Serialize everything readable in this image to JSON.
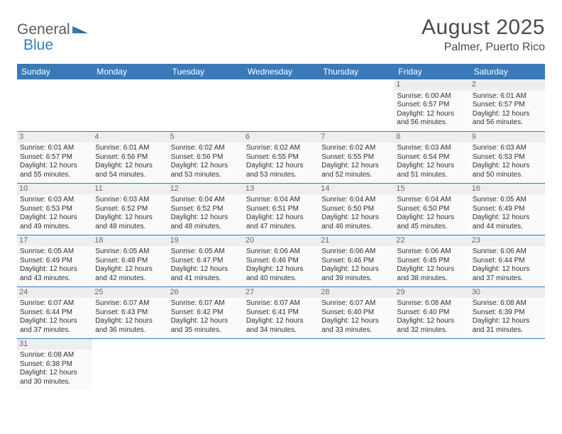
{
  "logo": {
    "word1": "General",
    "word2": "Blue"
  },
  "title": "August 2025",
  "subtitle": "Palmer, Puerto Rico",
  "colors": {
    "header_bg": "#3a7ab8",
    "header_text": "#ffffff",
    "cell_bg": "#fafafa",
    "daybar_bg": "#eeeeee",
    "border": "#3a7ab8",
    "text": "#303030",
    "logo_gray": "#5a5a5a",
    "logo_blue": "#3a7ab8"
  },
  "fontsize": {
    "title": 30,
    "subtitle": 16,
    "th": 12,
    "cell": 10,
    "daynum": 11
  },
  "weekdays": [
    "Sunday",
    "Monday",
    "Tuesday",
    "Wednesday",
    "Thursday",
    "Friday",
    "Saturday"
  ],
  "first_weekday": 5,
  "days_in_month": 31,
  "days": {
    "1": {
      "sunrise": "6:00 AM",
      "sunset": "6:57 PM",
      "daylight": "12 hours and 56 minutes."
    },
    "2": {
      "sunrise": "6:01 AM",
      "sunset": "6:57 PM",
      "daylight": "12 hours and 56 minutes."
    },
    "3": {
      "sunrise": "6:01 AM",
      "sunset": "6:57 PM",
      "daylight": "12 hours and 55 minutes."
    },
    "4": {
      "sunrise": "6:01 AM",
      "sunset": "6:56 PM",
      "daylight": "12 hours and 54 minutes."
    },
    "5": {
      "sunrise": "6:02 AM",
      "sunset": "6:56 PM",
      "daylight": "12 hours and 53 minutes."
    },
    "6": {
      "sunrise": "6:02 AM",
      "sunset": "6:55 PM",
      "daylight": "12 hours and 53 minutes."
    },
    "7": {
      "sunrise": "6:02 AM",
      "sunset": "6:55 PM",
      "daylight": "12 hours and 52 minutes."
    },
    "8": {
      "sunrise": "6:03 AM",
      "sunset": "6:54 PM",
      "daylight": "12 hours and 51 minutes."
    },
    "9": {
      "sunrise": "6:03 AM",
      "sunset": "6:53 PM",
      "daylight": "12 hours and 50 minutes."
    },
    "10": {
      "sunrise": "6:03 AM",
      "sunset": "6:53 PM",
      "daylight": "12 hours and 49 minutes."
    },
    "11": {
      "sunrise": "6:03 AM",
      "sunset": "6:52 PM",
      "daylight": "12 hours and 48 minutes."
    },
    "12": {
      "sunrise": "6:04 AM",
      "sunset": "6:52 PM",
      "daylight": "12 hours and 48 minutes."
    },
    "13": {
      "sunrise": "6:04 AM",
      "sunset": "6:51 PM",
      "daylight": "12 hours and 47 minutes."
    },
    "14": {
      "sunrise": "6:04 AM",
      "sunset": "6:50 PM",
      "daylight": "12 hours and 46 minutes."
    },
    "15": {
      "sunrise": "6:04 AM",
      "sunset": "6:50 PM",
      "daylight": "12 hours and 45 minutes."
    },
    "16": {
      "sunrise": "6:05 AM",
      "sunset": "6:49 PM",
      "daylight": "12 hours and 44 minutes."
    },
    "17": {
      "sunrise": "6:05 AM",
      "sunset": "6:49 PM",
      "daylight": "12 hours and 43 minutes."
    },
    "18": {
      "sunrise": "6:05 AM",
      "sunset": "6:48 PM",
      "daylight": "12 hours and 42 minutes."
    },
    "19": {
      "sunrise": "6:05 AM",
      "sunset": "6:47 PM",
      "daylight": "12 hours and 41 minutes."
    },
    "20": {
      "sunrise": "6:06 AM",
      "sunset": "6:46 PM",
      "daylight": "12 hours and 40 minutes."
    },
    "21": {
      "sunrise": "6:06 AM",
      "sunset": "6:46 PM",
      "daylight": "12 hours and 39 minutes."
    },
    "22": {
      "sunrise": "6:06 AM",
      "sunset": "6:45 PM",
      "daylight": "12 hours and 38 minutes."
    },
    "23": {
      "sunrise": "6:06 AM",
      "sunset": "6:44 PM",
      "daylight": "12 hours and 37 minutes."
    },
    "24": {
      "sunrise": "6:07 AM",
      "sunset": "6:44 PM",
      "daylight": "12 hours and 37 minutes."
    },
    "25": {
      "sunrise": "6:07 AM",
      "sunset": "6:43 PM",
      "daylight": "12 hours and 36 minutes."
    },
    "26": {
      "sunrise": "6:07 AM",
      "sunset": "6:42 PM",
      "daylight": "12 hours and 35 minutes."
    },
    "27": {
      "sunrise": "6:07 AM",
      "sunset": "6:41 PM",
      "daylight": "12 hours and 34 minutes."
    },
    "28": {
      "sunrise": "6:07 AM",
      "sunset": "6:40 PM",
      "daylight": "12 hours and 33 minutes."
    },
    "29": {
      "sunrise": "6:08 AM",
      "sunset": "6:40 PM",
      "daylight": "12 hours and 32 minutes."
    },
    "30": {
      "sunrise": "6:08 AM",
      "sunset": "6:39 PM",
      "daylight": "12 hours and 31 minutes."
    },
    "31": {
      "sunrise": "6:08 AM",
      "sunset": "6:38 PM",
      "daylight": "12 hours and 30 minutes."
    }
  },
  "labels": {
    "sunrise": "Sunrise:",
    "sunset": "Sunset:",
    "daylight": "Daylight:"
  }
}
